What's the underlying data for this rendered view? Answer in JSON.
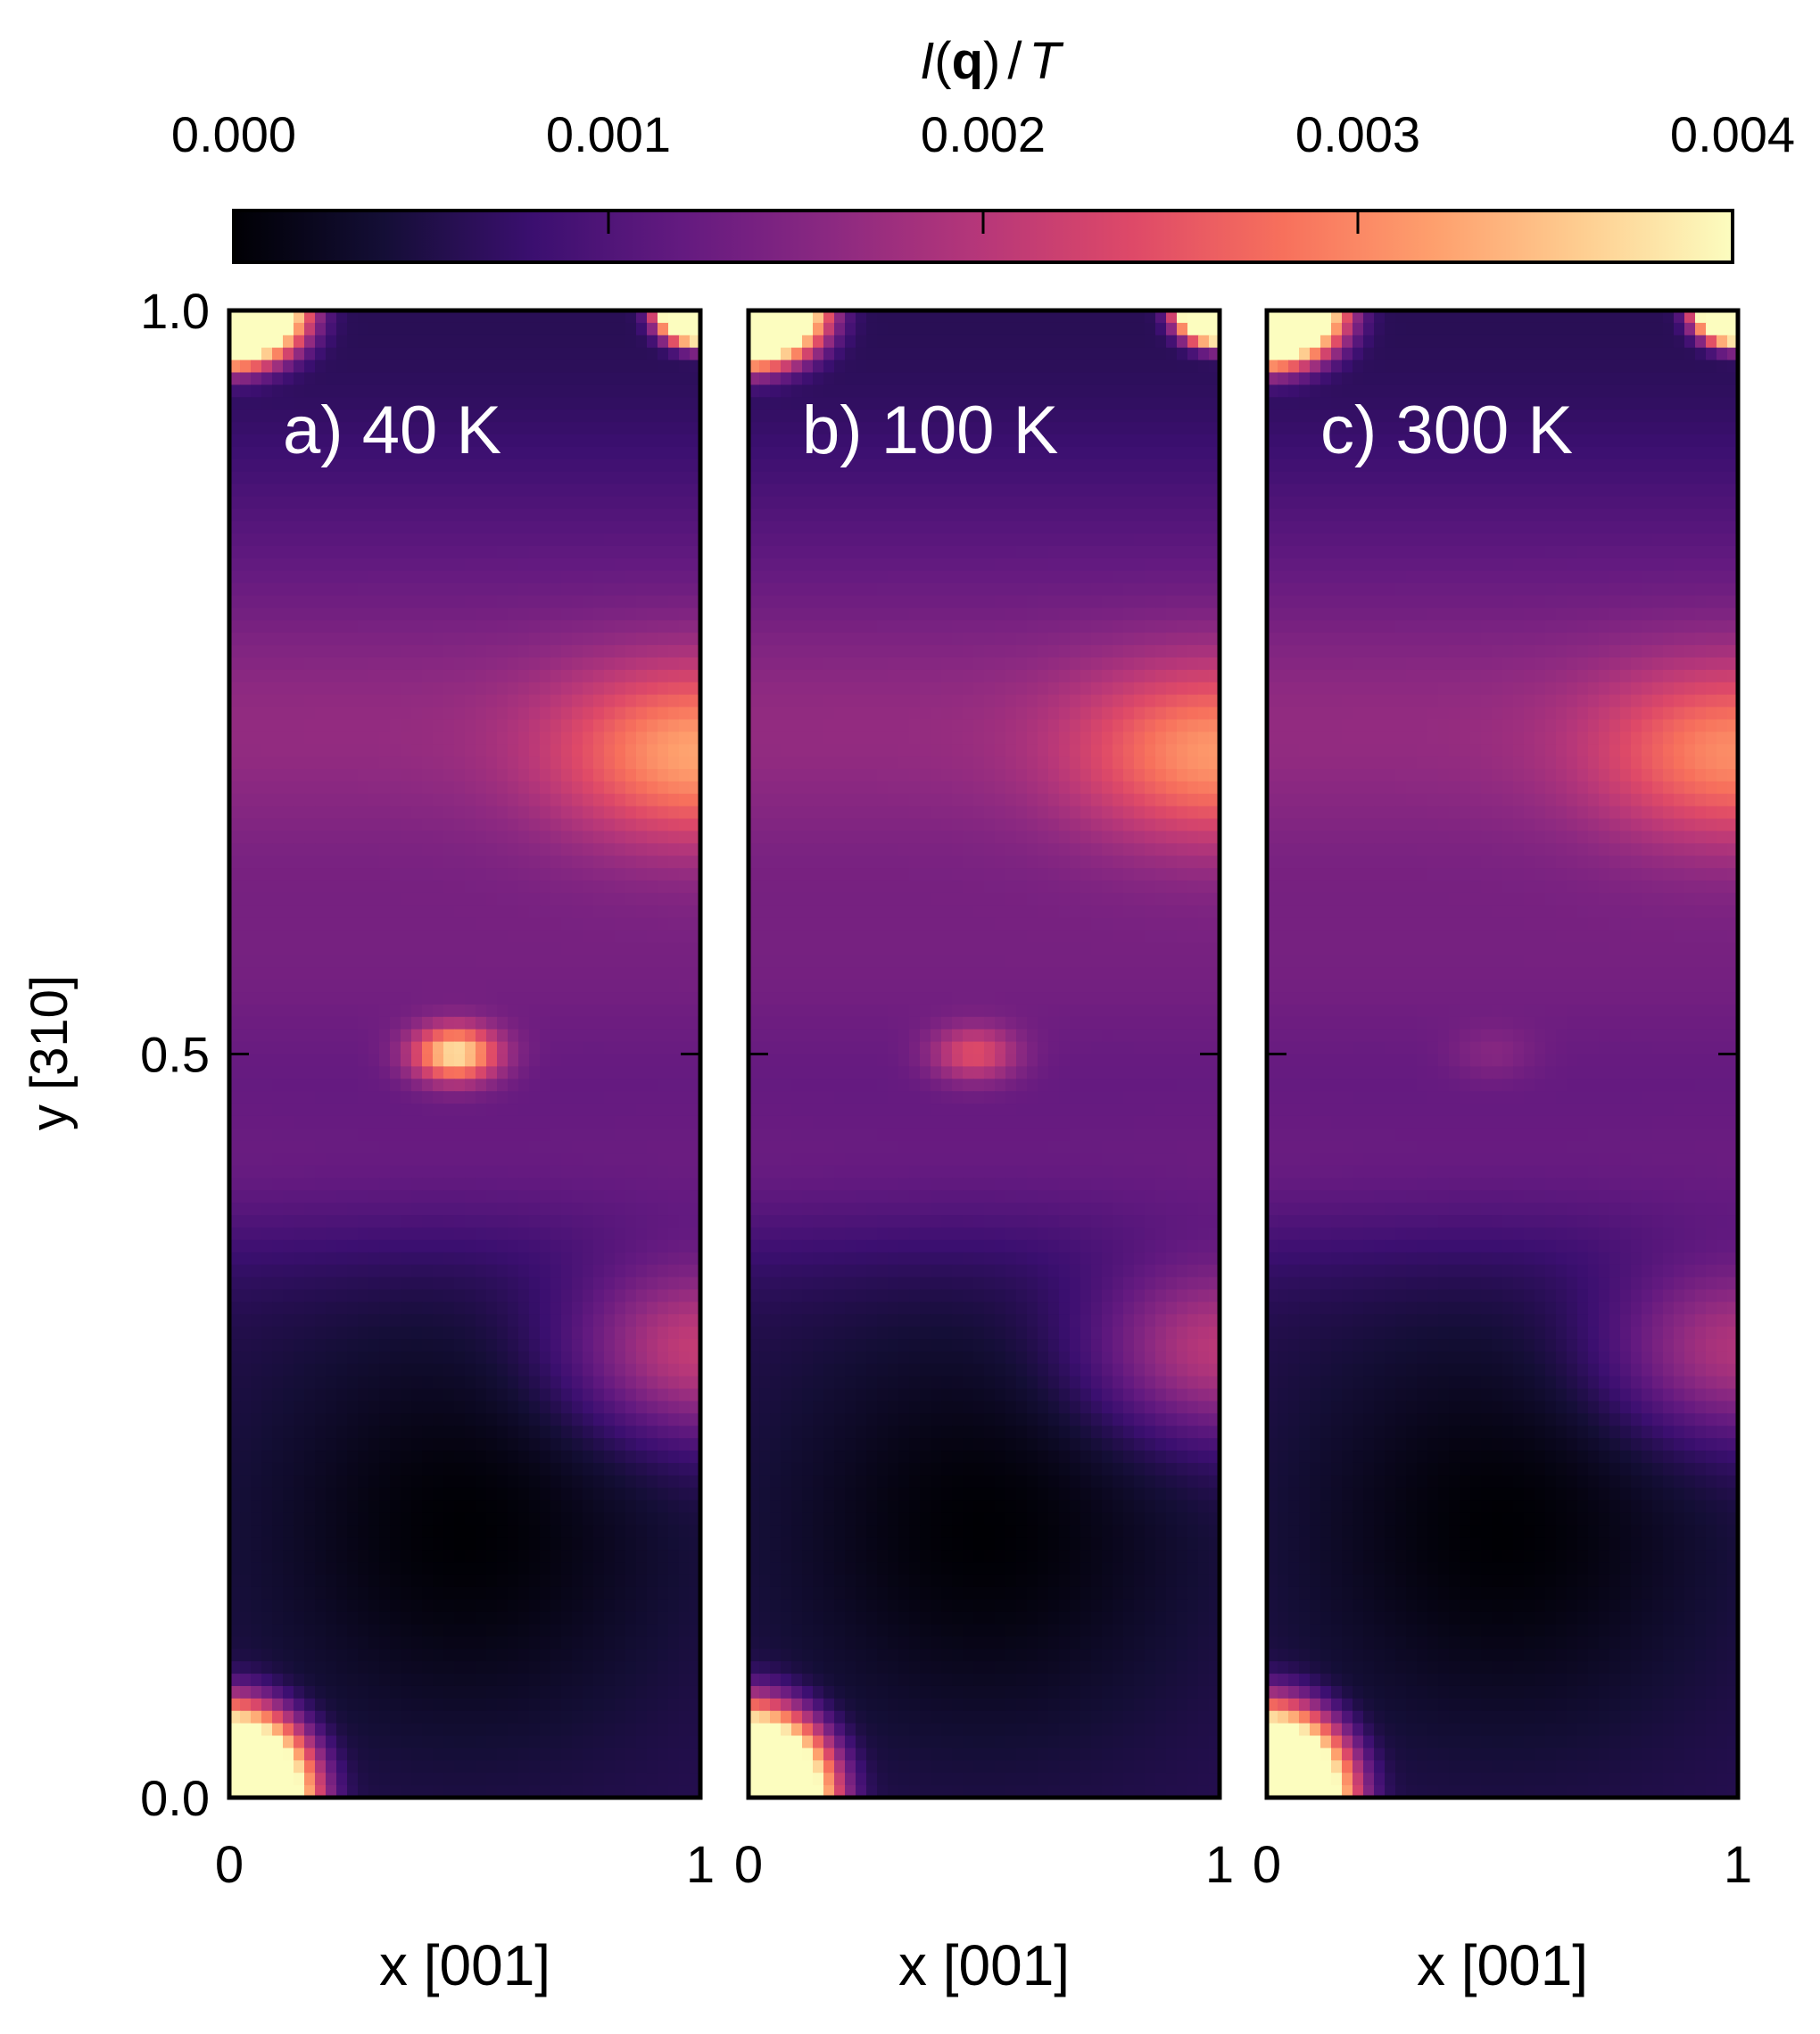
{
  "chart_data": {
    "type": "heatmap",
    "colormap": "magma",
    "colorbar": {
      "title_italic_prefix": "I",
      "title_bold_part": "q",
      "title_italic_suffix": "T",
      "title_symbols": [
        "(",
        ")",
        "/"
      ],
      "range": [
        0.0,
        0.004
      ],
      "ticks": [
        0.0,
        0.001,
        0.002,
        0.003,
        0.004
      ],
      "tick_labels": [
        "0.000",
        "0.001",
        "0.002",
        "0.003",
        "0.004"
      ],
      "placement": "top"
    },
    "xlabel": "x [001]",
    "ylabel": "y [310]",
    "xlim": [
      0,
      1
    ],
    "ylim": [
      0,
      1
    ],
    "x_tick_labels": [
      "0",
      "1"
    ],
    "y_tick_labels": [
      "0.0",
      "0.5",
      "1.0"
    ],
    "grid": false,
    "panels": [
      {
        "label": "a) 40 K",
        "temperature_K": 40,
        "features": {
          "corner_bragg_peaks": [
            {
              "x": 0.0,
              "y": 0.0
            },
            {
              "x": 0.0,
              "y": 1.0
            },
            {
              "x": 1.0,
              "y": 1.0
            }
          ],
          "corner_peak_value": 0.004,
          "center_peak": {
            "x": 0.48,
            "y": 0.5,
            "value": 0.004
          },
          "upper_right_diffuse": {
            "x": 1.0,
            "y": 0.7,
            "value": 0.0028
          },
          "lower_right_diffuse": {
            "x": 1.0,
            "y": 0.3,
            "value": 0.0026
          },
          "background_min": {
            "x": 0.5,
            "y": 0.18,
            "value": 0.0003
          },
          "background_typical": 0.0013
        }
      },
      {
        "label": "b) 100 K",
        "temperature_K": 100,
        "features": {
          "corner_bragg_peaks": [
            {
              "x": 0.0,
              "y": 0.0
            },
            {
              "x": 0.0,
              "y": 1.0
            },
            {
              "x": 1.0,
              "y": 1.0
            }
          ],
          "corner_peak_value": 0.004,
          "center_peak": {
            "x": 0.48,
            "y": 0.5,
            "value": 0.0026
          },
          "upper_right_diffuse": {
            "x": 1.0,
            "y": 0.7,
            "value": 0.0027
          },
          "lower_right_diffuse": {
            "x": 1.0,
            "y": 0.3,
            "value": 0.0025
          },
          "background_min": {
            "x": 0.5,
            "y": 0.18,
            "value": 0.0003
          },
          "background_typical": 0.0013
        }
      },
      {
        "label": "c) 300 K",
        "temperature_K": 300,
        "features": {
          "corner_bragg_peaks": [
            {
              "x": 0.0,
              "y": 0.0
            },
            {
              "x": 0.0,
              "y": 1.0
            },
            {
              "x": 1.0,
              "y": 1.0
            }
          ],
          "corner_peak_value": 0.004,
          "center_peak": {
            "x": 0.48,
            "y": 0.5,
            "value": 0.0017
          },
          "upper_right_diffuse": {
            "x": 1.0,
            "y": 0.7,
            "value": 0.0026
          },
          "lower_right_diffuse": {
            "x": 1.0,
            "y": 0.3,
            "value": 0.0024
          },
          "background_min": {
            "x": 0.5,
            "y": 0.18,
            "value": 0.0003
          },
          "background_typical": 0.0013
        }
      }
    ]
  }
}
